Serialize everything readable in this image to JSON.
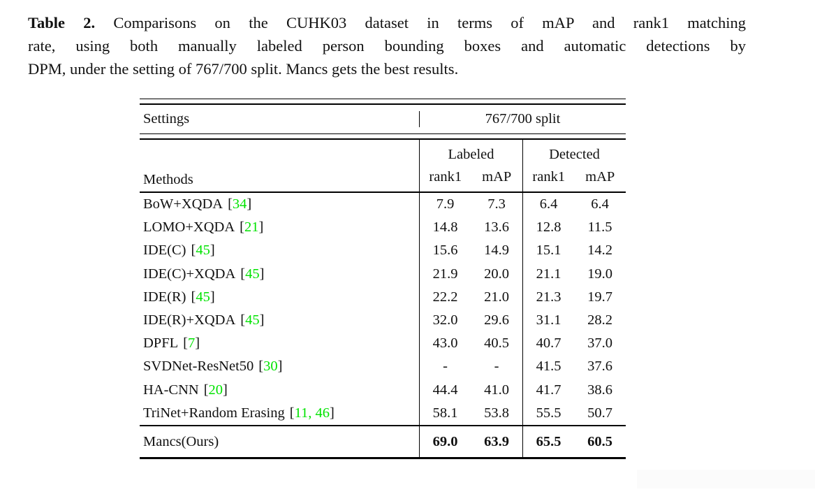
{
  "caption": {
    "label": "Table 2.",
    "line1": "Comparisons on the CUHK03 dataset in terms of mAP and rank1 matching",
    "line2": "rate, using both manually labeled person bounding boxes and automatic detections by",
    "line3": "DPM, under the setting of 767/700 split. Mancs gets the best results."
  },
  "table": {
    "settings_label": "Settings",
    "split_label": "767/700 split",
    "methods_label": "Methods",
    "group_headers": {
      "labeled": "Labeled",
      "detected": "Detected"
    },
    "subheaders": {
      "rank1": "rank1",
      "map": "mAP"
    },
    "symbols": {
      "lbracket": "[",
      "rbracket": "]"
    },
    "accent_green": "#00e300",
    "rule_color": "#000000",
    "rows": [
      {
        "method": "BoW+XQDA",
        "cite": "34",
        "values": [
          "7.9",
          "7.3",
          "6.4",
          "6.4"
        ]
      },
      {
        "method": "LOMO+XQDA",
        "cite": "21",
        "values": [
          "14.8",
          "13.6",
          "12.8",
          "11.5"
        ]
      },
      {
        "method": "IDE(C)",
        "cite": "45",
        "values": [
          "15.6",
          "14.9",
          "15.1",
          "14.2"
        ]
      },
      {
        "method": "IDE(C)+XQDA",
        "cite": "45",
        "values": [
          "21.9",
          "20.0",
          "21.1",
          "19.0"
        ]
      },
      {
        "method": "IDE(R)",
        "cite": "45",
        "values": [
          "22.2",
          "21.0",
          "21.3",
          "19.7"
        ]
      },
      {
        "method": "IDE(R)+XQDA",
        "cite": "45",
        "values": [
          "32.0",
          "29.6",
          "31.1",
          "28.2"
        ]
      },
      {
        "method": "DPFL",
        "cite": "7",
        "values": [
          "43.0",
          "40.5",
          "40.7",
          "37.0"
        ]
      },
      {
        "method": "SVDNet-ResNet50",
        "cite": "30",
        "values": [
          "-",
          "-",
          "41.5",
          "37.6"
        ]
      },
      {
        "method": "HA-CNN",
        "cite": "20",
        "values": [
          "44.4",
          "41.0",
          "41.7",
          "38.6"
        ]
      },
      {
        "method": "TriNet+Random Erasing",
        "cite": "11, 46",
        "values": [
          "58.1",
          "53.8",
          "55.5",
          "50.7"
        ]
      }
    ],
    "ours_row": {
      "method": "Mancs(Ours)",
      "values": [
        "69.0",
        "63.9",
        "65.5",
        "60.5"
      ]
    }
  }
}
